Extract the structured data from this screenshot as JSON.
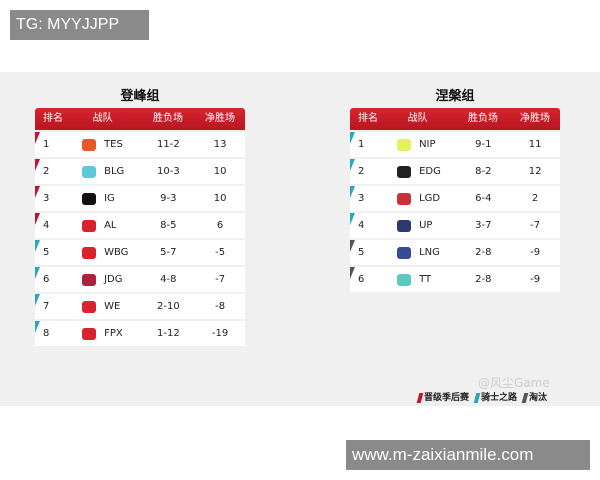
{
  "overlay_top": "TG: MYYJJPP",
  "overlay_bottom": "www.m-zaixianmile.com",
  "watermark": "@风尘Game",
  "headers": [
    "排名",
    "战队",
    "胜负场",
    "净胜场"
  ],
  "colors": {
    "playoffs": "#c8102e",
    "knight": "#2aa8b8",
    "eliminated": "#555555"
  },
  "groups": [
    {
      "title": "登峰组",
      "rows": [
        {
          "rank": "1",
          "team": "TES",
          "record": "11-2",
          "net": "13",
          "status": "playoffs",
          "logo_color": "#e8562a"
        },
        {
          "rank": "2",
          "team": "BLG",
          "record": "10-3",
          "net": "10",
          "status": "playoffs",
          "logo_color": "#5cc8d8"
        },
        {
          "rank": "3",
          "team": "IG",
          "record": "9-3",
          "net": "10",
          "status": "playoffs",
          "logo_color": "#111111"
        },
        {
          "rank": "4",
          "team": "AL",
          "record": "8-5",
          "net": "6",
          "status": "playoffs",
          "logo_color": "#d8232f"
        },
        {
          "rank": "5",
          "team": "WBG",
          "record": "5-7",
          "net": "-5",
          "status": "knight",
          "logo_color": "#d8232f"
        },
        {
          "rank": "6",
          "team": "JDG",
          "record": "4-8",
          "net": "-7",
          "status": "knight",
          "logo_color": "#b0203a"
        },
        {
          "rank": "7",
          "team": "WE",
          "record": "2-10",
          "net": "-8",
          "status": "knight",
          "logo_color": "#d8232f"
        },
        {
          "rank": "8",
          "team": "FPX",
          "record": "1-12",
          "net": "-19",
          "status": "knight",
          "logo_color": "#d8232f"
        }
      ]
    },
    {
      "title": "涅槃组",
      "rows": [
        {
          "rank": "1",
          "team": "NIP",
          "record": "9-1",
          "net": "11",
          "status": "knight",
          "logo_color": "#e6f05a"
        },
        {
          "rank": "2",
          "team": "EDG",
          "record": "8-2",
          "net": "12",
          "status": "knight",
          "logo_color": "#222222"
        },
        {
          "rank": "3",
          "team": "LGD",
          "record": "6-4",
          "net": "2",
          "status": "knight",
          "logo_color": "#c8303a"
        },
        {
          "rank": "4",
          "team": "UP",
          "record": "3-7",
          "net": "-7",
          "status": "knight",
          "logo_color": "#2a3a6a"
        },
        {
          "rank": "5",
          "team": "LNG",
          "record": "2-8",
          "net": "-9",
          "status": "eliminated",
          "logo_color": "#3a4a9a"
        },
        {
          "rank": "6",
          "team": "TT",
          "record": "2-8",
          "net": "-9",
          "status": "eliminated",
          "logo_color": "#5cc8c0"
        }
      ]
    }
  ],
  "legend": [
    {
      "label": "晋级季后赛",
      "status": "playoffs"
    },
    {
      "label": "骑士之路",
      "status": "knight"
    },
    {
      "label": "淘汰",
      "status": "eliminated"
    }
  ]
}
